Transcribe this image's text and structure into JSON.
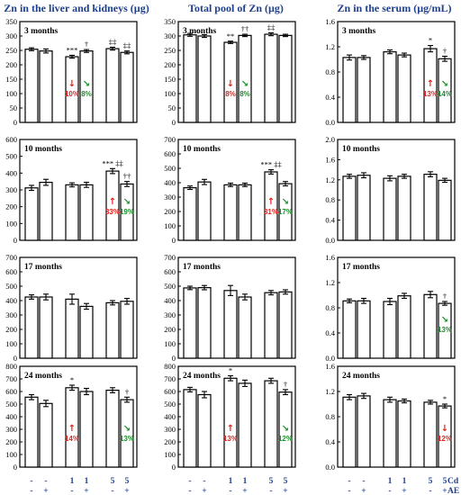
{
  "column_titles": [
    "Zn in the liver and kidneys (µg)",
    "Total pool of Zn (µg)",
    "Zn in the serum (µg/mL)"
  ],
  "row_labels": [
    "3 months",
    "10 months",
    "17 months",
    "24 months"
  ],
  "group_rows": {
    "cd": {
      "name": "Cd",
      "values": [
        "-",
        "-",
        "1",
        "1",
        "5",
        "5"
      ]
    },
    "ae": {
      "name": "AE",
      "values": [
        "-",
        "+",
        "-",
        "+",
        "-",
        "+"
      ]
    }
  },
  "colors": {
    "title": "#1f3f8f",
    "increase": "#e8201c",
    "decrease": "#1c8f2a"
  },
  "chart_data": [
    {
      "type": "bar",
      "column": 0,
      "row": 0,
      "panel_label": "3 months",
      "ylim": [
        0,
        350
      ],
      "yticks": [
        0,
        50,
        100,
        150,
        200,
        250,
        300,
        350
      ],
      "tick_decimals": 0,
      "values": [
        254,
        248,
        228,
        248,
        256,
        243
      ],
      "errors": [
        5,
        7,
        5,
        5,
        5,
        5
      ],
      "sig": [
        "",
        "",
        "***",
        "†",
        "‡‡",
        "‡‡"
      ],
      "annotations": [
        {
          "bar": 2,
          "direction": "down",
          "text": "10%"
        },
        {
          "bar": 3,
          "direction": "diag",
          "text": "8%"
        }
      ]
    },
    {
      "type": "bar",
      "column": 0,
      "row": 1,
      "panel_label": "10 months",
      "ylim": [
        0,
        600
      ],
      "yticks": [
        0,
        100,
        200,
        300,
        400,
        500,
        600
      ],
      "tick_decimals": 0,
      "values": [
        312,
        345,
        330,
        330,
        412,
        335
      ],
      "errors": [
        15,
        18,
        12,
        15,
        15,
        15
      ],
      "sig": [
        "",
        "",
        "",
        "",
        "***  ‡‡",
        "††"
      ],
      "annotations": [
        {
          "bar": 4,
          "direction": "up",
          "text": "33%"
        },
        {
          "bar": 5,
          "direction": "diag",
          "text": "19%"
        }
      ]
    },
    {
      "type": "bar",
      "column": 0,
      "row": 2,
      "panel_label": "17 months",
      "ylim": [
        0,
        700
      ],
      "yticks": [
        0,
        100,
        200,
        300,
        400,
        500,
        600,
        700
      ],
      "tick_decimals": 0,
      "values": [
        425,
        425,
        410,
        360,
        385,
        395
      ],
      "errors": [
        15,
        20,
        35,
        20,
        15,
        20
      ],
      "sig": [
        "",
        "",
        "",
        "",
        "",
        ""
      ],
      "annotations": []
    },
    {
      "type": "bar",
      "column": 0,
      "row": 3,
      "panel_label": "24 months",
      "ylim": [
        0,
        800
      ],
      "yticks": [
        0,
        100,
        200,
        300,
        400,
        500,
        600,
        700,
        800
      ],
      "tick_decimals": 0,
      "values": [
        555,
        505,
        630,
        600,
        610,
        535
      ],
      "errors": [
        20,
        25,
        20,
        25,
        20,
        20
      ],
      "sig": [
        "",
        "",
        "*",
        "",
        "",
        "†"
      ],
      "annotations": [
        {
          "bar": 2,
          "direction": "up",
          "text": "14%"
        },
        {
          "bar": 5,
          "direction": "diag",
          "text": "13%"
        }
      ]
    },
    {
      "type": "bar",
      "column": 1,
      "row": 0,
      "panel_label": "3 months",
      "ylim": [
        0,
        350
      ],
      "yticks": [
        0,
        50,
        100,
        150,
        200,
        250,
        300,
        350
      ],
      "tick_decimals": 0,
      "values": [
        304,
        300,
        278,
        302,
        306,
        302
      ],
      "errors": [
        5,
        5,
        4,
        4,
        5,
        4
      ],
      "sig": [
        "",
        "",
        "**",
        "††",
        "‡‡",
        ""
      ],
      "annotations": [
        {
          "bar": 2,
          "direction": "down",
          "text": "8%"
        },
        {
          "bar": 3,
          "direction": "diag",
          "text": "8%"
        }
      ]
    },
    {
      "type": "bar",
      "column": 1,
      "row": 1,
      "panel_label": "10 months",
      "ylim": [
        0,
        700
      ],
      "yticks": [
        0,
        100,
        200,
        300,
        400,
        500,
        600,
        700
      ],
      "tick_decimals": 0,
      "values": [
        365,
        405,
        385,
        385,
        475,
        393
      ],
      "errors": [
        12,
        18,
        12,
        12,
        15,
        15
      ],
      "sig": [
        "",
        "",
        "",
        "",
        "***  ‡‡",
        ""
      ],
      "annotations": [
        {
          "bar": 4,
          "direction": "up",
          "text": "31%"
        },
        {
          "bar": 5,
          "direction": "diag",
          "text": "17%"
        }
      ]
    },
    {
      "type": "bar",
      "column": 1,
      "row": 2,
      "panel_label": "17 months",
      "ylim": [
        0,
        700
      ],
      "yticks": [
        0,
        100,
        200,
        300,
        400,
        500,
        600,
        700
      ],
      "tick_decimals": 0,
      "values": [
        488,
        490,
        470,
        425,
        455,
        460
      ],
      "errors": [
        12,
        15,
        35,
        20,
        15,
        15
      ],
      "sig": [
        "",
        "",
        "",
        "",
        "",
        ""
      ],
      "annotations": []
    },
    {
      "type": "bar",
      "column": 1,
      "row": 3,
      "panel_label": "24 months",
      "ylim": [
        0,
        800
      ],
      "yticks": [
        0,
        100,
        200,
        300,
        400,
        500,
        600,
        700,
        800
      ],
      "tick_decimals": 0,
      "values": [
        615,
        575,
        705,
        665,
        685,
        595
      ],
      "errors": [
        18,
        25,
        20,
        25,
        20,
        20
      ],
      "sig": [
        "",
        "",
        "*",
        "",
        "",
        "†"
      ],
      "annotations": [
        {
          "bar": 2,
          "direction": "up",
          "text": "13%"
        },
        {
          "bar": 5,
          "direction": "diag",
          "text": "12%"
        }
      ]
    },
    {
      "type": "bar",
      "column": 2,
      "row": 0,
      "panel_label": "3 months",
      "ylim": [
        0,
        1.6
      ],
      "yticks": [
        0,
        0.4,
        0.8,
        1.2,
        1.6
      ],
      "tick_decimals": 1,
      "values": [
        1.03,
        1.03,
        1.12,
        1.07,
        1.17,
        1.01
      ],
      "errors": [
        0.04,
        0.03,
        0.03,
        0.03,
        0.05,
        0.04
      ],
      "sig": [
        "",
        "",
        "",
        "",
        "*",
        "†"
      ],
      "annotations": [
        {
          "bar": 4,
          "direction": "up",
          "text": "13%"
        },
        {
          "bar": 5,
          "direction": "diag",
          "text": "14%"
        }
      ]
    },
    {
      "type": "bar",
      "column": 2,
      "row": 1,
      "panel_label": "10 months",
      "ylim": [
        0,
        2.0
      ],
      "yticks": [
        0,
        0.4,
        0.8,
        1.2,
        1.6,
        2.0
      ],
      "tick_decimals": 1,
      "values": [
        1.27,
        1.29,
        1.23,
        1.27,
        1.31,
        1.19
      ],
      "errors": [
        0.04,
        0.05,
        0.05,
        0.04,
        0.05,
        0.04
      ],
      "sig": [
        "",
        "",
        "",
        "",
        "",
        ""
      ],
      "annotations": []
    },
    {
      "type": "bar",
      "column": 2,
      "row": 2,
      "panel_label": "17 months",
      "ylim": [
        0,
        1.6
      ],
      "yticks": [
        0,
        0.4,
        0.8,
        1.2,
        1.6
      ],
      "tick_decimals": 1,
      "values": [
        0.91,
        0.91,
        0.9,
        0.99,
        1.01,
        0.87
      ],
      "errors": [
        0.03,
        0.04,
        0.05,
        0.04,
        0.05,
        0.03
      ],
      "sig": [
        "",
        "",
        "",
        "",
        "",
        "†"
      ],
      "annotations": [
        {
          "bar": 5,
          "direction": "diag",
          "text": "13%"
        }
      ]
    },
    {
      "type": "bar",
      "column": 2,
      "row": 3,
      "panel_label": "24 months",
      "ylim": [
        0,
        1.6
      ],
      "yticks": [
        0,
        0.4,
        0.8,
        1.2,
        1.6
      ],
      "tick_decimals": 1,
      "values": [
        1.11,
        1.13,
        1.07,
        1.05,
        1.03,
        0.97
      ],
      "errors": [
        0.04,
        0.04,
        0.04,
        0.03,
        0.03,
        0.03
      ],
      "sig": [
        "",
        "",
        "",
        "",
        "",
        "*"
      ],
      "annotations": [
        {
          "bar": 5,
          "direction": "down",
          "text": "12%"
        }
      ]
    }
  ]
}
